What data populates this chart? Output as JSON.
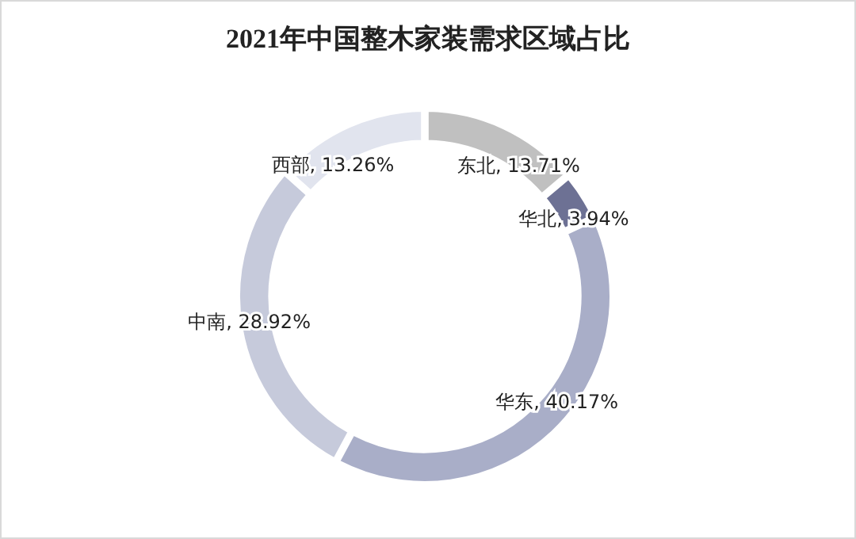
{
  "chart_data": {
    "type": "donut",
    "title": "2021年中国整木家装需求区域占比",
    "categories": [
      "东北",
      "华北",
      "华东",
      "中南",
      "西部"
    ],
    "values": [
      13.71,
      3.94,
      40.17,
      28.92,
      13.26
    ],
    "colors": [
      "#c0c0c0",
      "#6d7194",
      "#a9aec8",
      "#c6cadb",
      "#e1e4ee"
    ],
    "value_labels": [
      "13.71%",
      "3.94%",
      "40.17%",
      "28.92%",
      "13.26%"
    ]
  }
}
